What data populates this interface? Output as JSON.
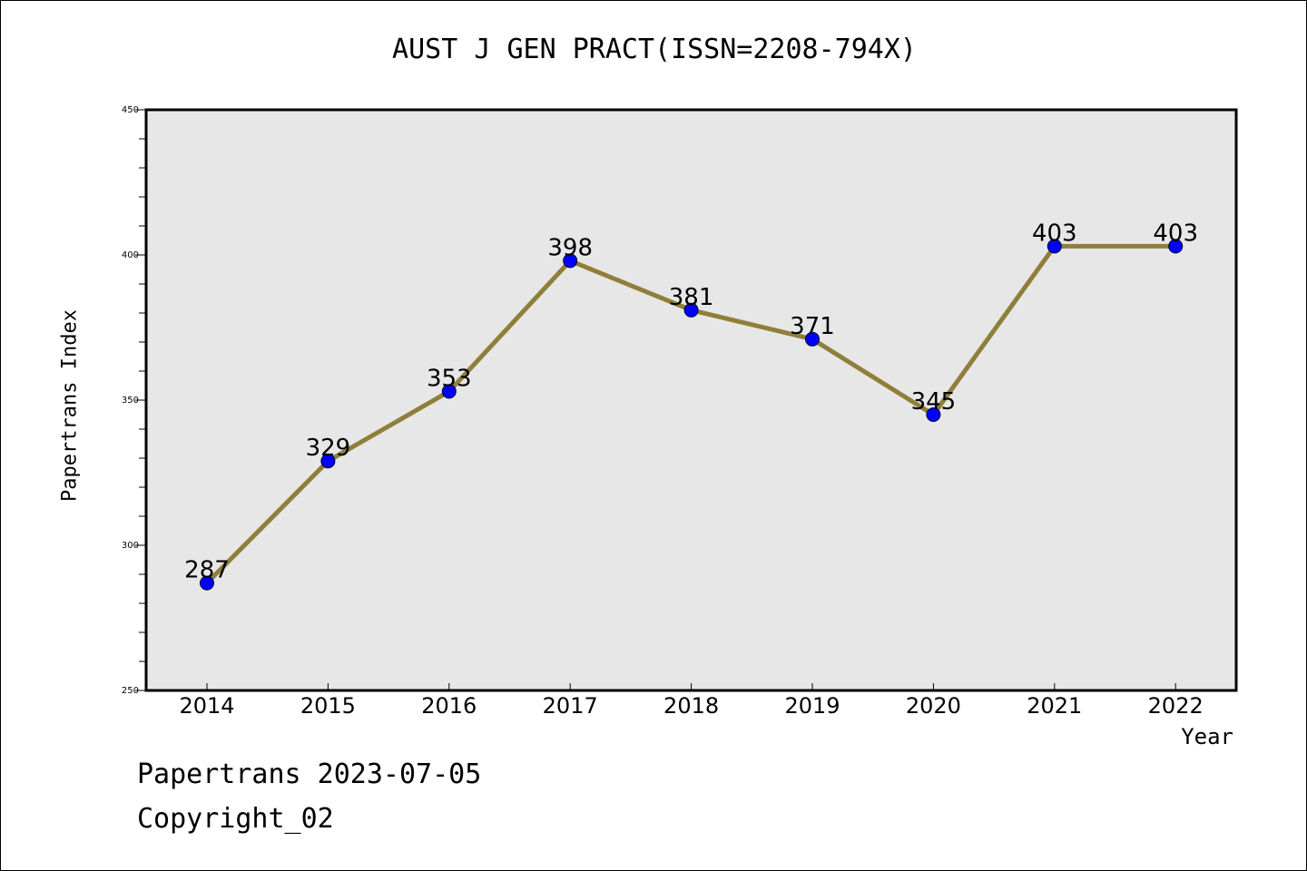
{
  "chart_data": {
    "type": "line",
    "title": "AUST J GEN PRACT(ISSN=2208-794X)",
    "xlabel": "Year",
    "ylabel": "Papertrans Index",
    "x": [
      "2014",
      "2015",
      "2016",
      "2017",
      "2018",
      "2019",
      "2020",
      "2021",
      "2022"
    ],
    "series": [
      {
        "values": [
          287,
          329,
          353,
          398,
          381,
          371,
          345,
          403,
          403
        ]
      }
    ],
    "ylim": [
      250,
      450
    ],
    "yticks": [
      250,
      300,
      350,
      400,
      450
    ],
    "grid": false,
    "colors": {
      "line": "#8f7f3a",
      "marker": "#0000ff",
      "plot_bg": "#e7e7e7"
    }
  },
  "footer": {
    "line1": "Papertrans 2023-07-05",
    "line2": "Copyright_02"
  }
}
